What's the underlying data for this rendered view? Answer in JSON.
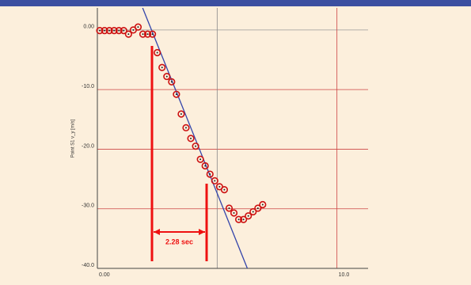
{
  "chart_data": {
    "type": "scatter",
    "y_label": "Point S1 v_y [m/s]",
    "xlim": [
      0,
      11.3
    ],
    "ylim": [
      -40,
      3.7
    ],
    "xticks": [
      {
        "value": 0,
        "label": "0.00"
      },
      {
        "value": 5,
        "label": null
      },
      {
        "value": 10,
        "label": "10.0"
      }
    ],
    "yticks": [
      {
        "value": 0,
        "label": "0.00"
      },
      {
        "value": -10,
        "label": "-10.0"
      },
      {
        "value": -20,
        "label": "-20.0"
      },
      {
        "value": -30,
        "label": "-30.0"
      },
      {
        "value": -40,
        "label": "-40.0"
      }
    ],
    "grid": true,
    "series": [
      {
        "color": "#cc1111",
        "x": [
          0.1,
          0.3,
          0.5,
          0.7,
          0.9,
          1.1,
          1.3,
          1.5,
          1.7,
          1.9,
          2.1,
          2.3,
          2.5,
          2.7,
          2.9,
          3.1,
          3.3,
          3.5,
          3.7,
          3.9,
          4.1,
          4.3,
          4.5,
          4.7,
          4.9,
          5.1,
          5.3,
          5.5,
          5.7,
          5.9,
          6.1,
          6.3,
          6.5,
          6.7,
          6.9
        ],
        "values": [
          -0.1,
          -0.1,
          -0.1,
          -0.1,
          -0.1,
          -0.1,
          -0.7,
          0,
          0.5,
          -0.7,
          -0.7,
          -0.7,
          -3.8,
          -6.3,
          -7.8,
          -8.7,
          -10.8,
          -14.1,
          -16.4,
          -18.2,
          -19.5,
          -21.7,
          -22.8,
          -24.2,
          -25.3,
          -26.3,
          -26.8,
          -29.9,
          -30.7,
          -31.8,
          -31.8,
          -31.2,
          -30.5,
          -29.9,
          -29.3
        ]
      }
    ],
    "fit": {
      "color": "#3344aa",
      "x": [
        1.89,
        6.26
      ],
      "values": [
        3.7,
        -40
      ]
    },
    "interval": {
      "color": "#ee1111",
      "x": [
        2.28,
        4.56
      ],
      "label": "2.28 sec"
    }
  }
}
